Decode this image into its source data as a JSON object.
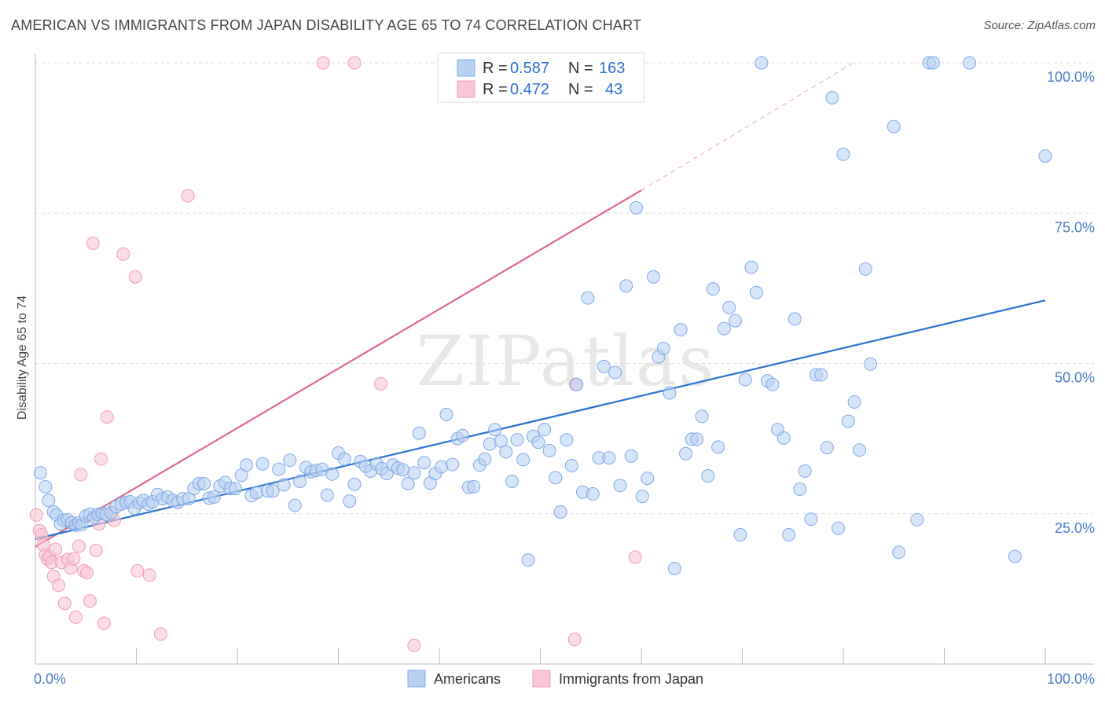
{
  "title": "AMERICAN VS IMMIGRANTS FROM JAPAN DISABILITY AGE 65 TO 74 CORRELATION CHART",
  "source": "Source: ZipAtlas.com",
  "watermark": "ZIPatlas",
  "colors": {
    "americans": "#7ea9e6",
    "americans_fill": "#b7d0f2",
    "americans_line": "#2a72d2",
    "japan": "#f09ab3",
    "japan_fill": "#f8c6d5",
    "japan_line": "#e0678e",
    "axis_tick": "#4a7cc9"
  },
  "legend": {
    "row1": {
      "r_label": "R = ",
      "r_value": "0.587",
      "n_label": "N = ",
      "n_value": "163"
    },
    "row2": {
      "r_label": "R = ",
      "r_value": "0.472",
      "n_label": "N = ",
      "n_value": "43"
    }
  },
  "chart_data": {
    "type": "scatter",
    "title": "AMERICAN VS IMMIGRANTS FROM JAPAN DISABILITY AGE 65 TO 74 CORRELATION CHART",
    "xlabel": "",
    "ylabel": "Disability Age 65 to 74",
    "xlim": [
      0,
      100
    ],
    "ylim": [
      0,
      100
    ],
    "x_tick_labels": [
      "0.0%",
      "100.0%"
    ],
    "y_tick_labels": [
      "25.0%",
      "50.0%",
      "75.0%",
      "100.0%"
    ],
    "y_ticks": [
      25,
      50,
      75,
      100
    ],
    "grid": true,
    "legend_position": "bottom",
    "series": [
      {
        "name": "Americans",
        "r": 0.587,
        "n": 163,
        "trend": {
          "x": [
            0,
            100
          ],
          "y": [
            20.8,
            60.5
          ]
        },
        "points": [
          [
            0.5,
            31.8
          ],
          [
            1,
            29.5
          ],
          [
            1.3,
            27.2
          ],
          [
            1.8,
            25.3
          ],
          [
            2.1,
            24.8
          ],
          [
            2.5,
            23.3
          ],
          [
            2.8,
            23.9
          ],
          [
            3.2,
            24.0
          ],
          [
            3.6,
            23.5
          ],
          [
            4,
            23.1
          ],
          [
            4.3,
            23.5
          ],
          [
            4.6,
            23.2
          ],
          [
            5,
            24.6
          ],
          [
            5.4,
            24.9
          ],
          [
            5.8,
            24.4
          ],
          [
            6.2,
            24.9
          ],
          [
            6.6,
            25.1
          ],
          [
            7,
            24.9
          ],
          [
            7.5,
            25.2
          ],
          [
            8,
            26.2
          ],
          [
            8.5,
            26.6
          ],
          [
            9,
            26.9
          ],
          [
            9.4,
            27.0
          ],
          [
            9.8,
            25.9
          ],
          [
            10.3,
            26.8
          ],
          [
            10.7,
            27.2
          ],
          [
            11.2,
            26.6
          ],
          [
            11.6,
            27.0
          ],
          [
            12.1,
            28.2
          ],
          [
            12.6,
            27.5
          ],
          [
            13.1,
            27.8
          ],
          [
            13.6,
            27.2
          ],
          [
            14.1,
            26.9
          ],
          [
            14.6,
            27.5
          ],
          [
            15.2,
            27.5
          ],
          [
            15.7,
            29.2
          ],
          [
            16.2,
            30.0
          ],
          [
            16.7,
            30.0
          ],
          [
            17.2,
            27.6
          ],
          [
            17.7,
            27.8
          ],
          [
            18.3,
            29.6
          ],
          [
            18.8,
            30.2
          ],
          [
            19.3,
            29.2
          ],
          [
            19.8,
            29.2
          ],
          [
            20.4,
            31.4
          ],
          [
            20.9,
            33.1
          ],
          [
            21.4,
            28.0
          ],
          [
            21.9,
            28.5
          ],
          [
            22.5,
            33.3
          ],
          [
            23,
            28.8
          ],
          [
            23.5,
            28.8
          ],
          [
            24.1,
            32.4
          ],
          [
            24.6,
            29.8
          ],
          [
            25.2,
            33.9
          ],
          [
            25.7,
            26.4
          ],
          [
            26.2,
            30.4
          ],
          [
            26.8,
            32.7
          ],
          [
            27.3,
            32.0
          ],
          [
            27.8,
            32.2
          ],
          [
            28.4,
            32.4
          ],
          [
            28.9,
            28.1
          ],
          [
            29.4,
            31.6
          ],
          [
            30,
            35.1
          ],
          [
            30.6,
            34.1
          ],
          [
            31.1,
            27.1
          ],
          [
            31.6,
            29.9
          ],
          [
            32.2,
            33.7
          ],
          [
            32.7,
            32.9
          ],
          [
            33.2,
            32.1
          ],
          [
            33.8,
            33.3
          ],
          [
            34.3,
            32.5
          ],
          [
            34.8,
            31.7
          ],
          [
            35.4,
            33.1
          ],
          [
            35.9,
            32.6
          ],
          [
            36.4,
            32.3
          ],
          [
            36.9,
            30.0
          ],
          [
            37.5,
            31.8
          ],
          [
            38,
            38.4
          ],
          [
            38.5,
            33.5
          ],
          [
            39.1,
            30.1
          ],
          [
            39.6,
            31.7
          ],
          [
            40.2,
            32.8
          ],
          [
            40.7,
            41.5
          ],
          [
            41.3,
            33.2
          ],
          [
            41.8,
            37.5
          ],
          [
            42.3,
            38.0
          ],
          [
            42.9,
            29.4
          ],
          [
            43.4,
            29.5
          ],
          [
            44,
            33.1
          ],
          [
            44.5,
            34.1
          ],
          [
            45,
            36.6
          ],
          [
            45.5,
            39.0
          ],
          [
            46.1,
            37.1
          ],
          [
            46.6,
            35.3
          ],
          [
            47.2,
            30.4
          ],
          [
            47.7,
            37.3
          ],
          [
            48.3,
            34.0
          ],
          [
            48.8,
            17.3
          ],
          [
            49.3,
            37.9
          ],
          [
            49.8,
            36.9
          ],
          [
            50.4,
            39.0
          ],
          [
            50.9,
            35.5
          ],
          [
            51.5,
            31.0
          ],
          [
            52,
            25.3
          ],
          [
            52.6,
            37.3
          ],
          [
            53.1,
            33.0
          ],
          [
            53.6,
            46.5
          ],
          [
            54.2,
            28.6
          ],
          [
            54.7,
            60.9
          ],
          [
            55.2,
            28.3
          ],
          [
            55.8,
            34.3
          ],
          [
            56.3,
            49.5
          ],
          [
            56.8,
            34.3
          ],
          [
            57.4,
            48.5
          ],
          [
            57.9,
            29.7
          ],
          [
            58.5,
            62.9
          ],
          [
            59,
            34.6
          ],
          [
            59.5,
            75.9
          ],
          [
            60.1,
            27.9
          ],
          [
            60.6,
            30.9
          ],
          [
            61.2,
            64.4
          ],
          [
            61.7,
            51.1
          ],
          [
            62.2,
            52.5
          ],
          [
            62.8,
            45.1
          ],
          [
            63.3,
            15.9
          ],
          [
            63.9,
            55.6
          ],
          [
            64.4,
            35.0
          ],
          [
            65,
            37.4
          ],
          [
            65.5,
            37.4
          ],
          [
            66,
            41.2
          ],
          [
            66.6,
            31.3
          ],
          [
            67.1,
            62.4
          ],
          [
            67.6,
            36.1
          ],
          [
            68.2,
            55.8
          ],
          [
            68.7,
            59.3
          ],
          [
            69.3,
            57.1
          ],
          [
            69.8,
            21.5
          ],
          [
            70.3,
            47.3
          ],
          [
            70.9,
            66.0
          ],
          [
            71.4,
            61.8
          ],
          [
            71.9,
            100
          ],
          [
            72.5,
            47.1
          ],
          [
            73,
            46.5
          ],
          [
            73.5,
            39.0
          ],
          [
            74.1,
            37.6
          ],
          [
            74.6,
            21.5
          ],
          [
            75.2,
            57.4
          ],
          [
            75.7,
            29.1
          ],
          [
            76.2,
            32.1
          ],
          [
            76.8,
            24.1
          ],
          [
            77.3,
            48.1
          ],
          [
            77.8,
            48.1
          ],
          [
            78.4,
            36.0
          ],
          [
            78.9,
            94.2
          ],
          [
            79.5,
            22.6
          ],
          [
            80,
            84.8
          ],
          [
            80.5,
            40.4
          ],
          [
            81.1,
            43.6
          ],
          [
            81.6,
            35.6
          ],
          [
            82.2,
            65.7
          ],
          [
            82.7,
            49.9
          ],
          [
            85,
            89.4
          ],
          [
            85.5,
            18.6
          ],
          [
            87.3,
            24.0
          ],
          [
            88.5,
            100
          ],
          [
            88.9,
            100
          ],
          [
            92.5,
            100
          ],
          [
            97,
            17.9
          ],
          [
            100,
            84.5
          ]
        ]
      },
      {
        "name": "Immigrants from Japan",
        "r": 0.472,
        "n": 43,
        "trend": {
          "x": [
            0,
            60
          ],
          "y": [
            19.5,
            78.8
          ]
        },
        "trend_dashed": {
          "x": [
            60,
            81
          ],
          "y": [
            78.8,
            100
          ]
        },
        "points": [
          [
            0.1,
            24.8
          ],
          [
            0.4,
            22.2
          ],
          [
            0.6,
            21.5
          ],
          [
            0.8,
            19.8
          ],
          [
            1,
            18.2
          ],
          [
            1.2,
            17.5
          ],
          [
            1.4,
            17.9
          ],
          [
            1.6,
            16.9
          ],
          [
            1.8,
            14.6
          ],
          [
            2,
            19.1
          ],
          [
            2.3,
            13.1
          ],
          [
            2.6,
            16.9
          ],
          [
            2.9,
            10.1
          ],
          [
            3.2,
            17.4
          ],
          [
            3.5,
            16.0
          ],
          [
            3.8,
            17.5
          ],
          [
            4,
            7.8
          ],
          [
            4.3,
            19.6
          ],
          [
            4.5,
            31.5
          ],
          [
            4.8,
            15.5
          ],
          [
            5.1,
            15.2
          ],
          [
            5.4,
            10.5
          ],
          [
            5.7,
            70.0
          ],
          [
            6,
            18.9
          ],
          [
            6.3,
            23.3
          ],
          [
            6.5,
            34.1
          ],
          [
            6.8,
            6.8
          ],
          [
            7.1,
            41.1
          ],
          [
            7.5,
            25.1
          ],
          [
            7.8,
            23.9
          ],
          [
            8.7,
            68.2
          ],
          [
            9.9,
            64.4
          ],
          [
            10.1,
            15.5
          ],
          [
            11.3,
            14.8
          ],
          [
            12.4,
            5.0
          ],
          [
            15.1,
            77.9
          ],
          [
            28.5,
            100
          ],
          [
            31.6,
            100
          ],
          [
            34.2,
            46.6
          ],
          [
            37.5,
            3.1
          ],
          [
            53.4,
            4.1
          ],
          [
            59.4,
            17.8
          ],
          [
            53.5,
            46.5
          ]
        ]
      }
    ]
  },
  "bottom_legend": {
    "americans": "Americans",
    "japan": "Immigrants from Japan"
  }
}
